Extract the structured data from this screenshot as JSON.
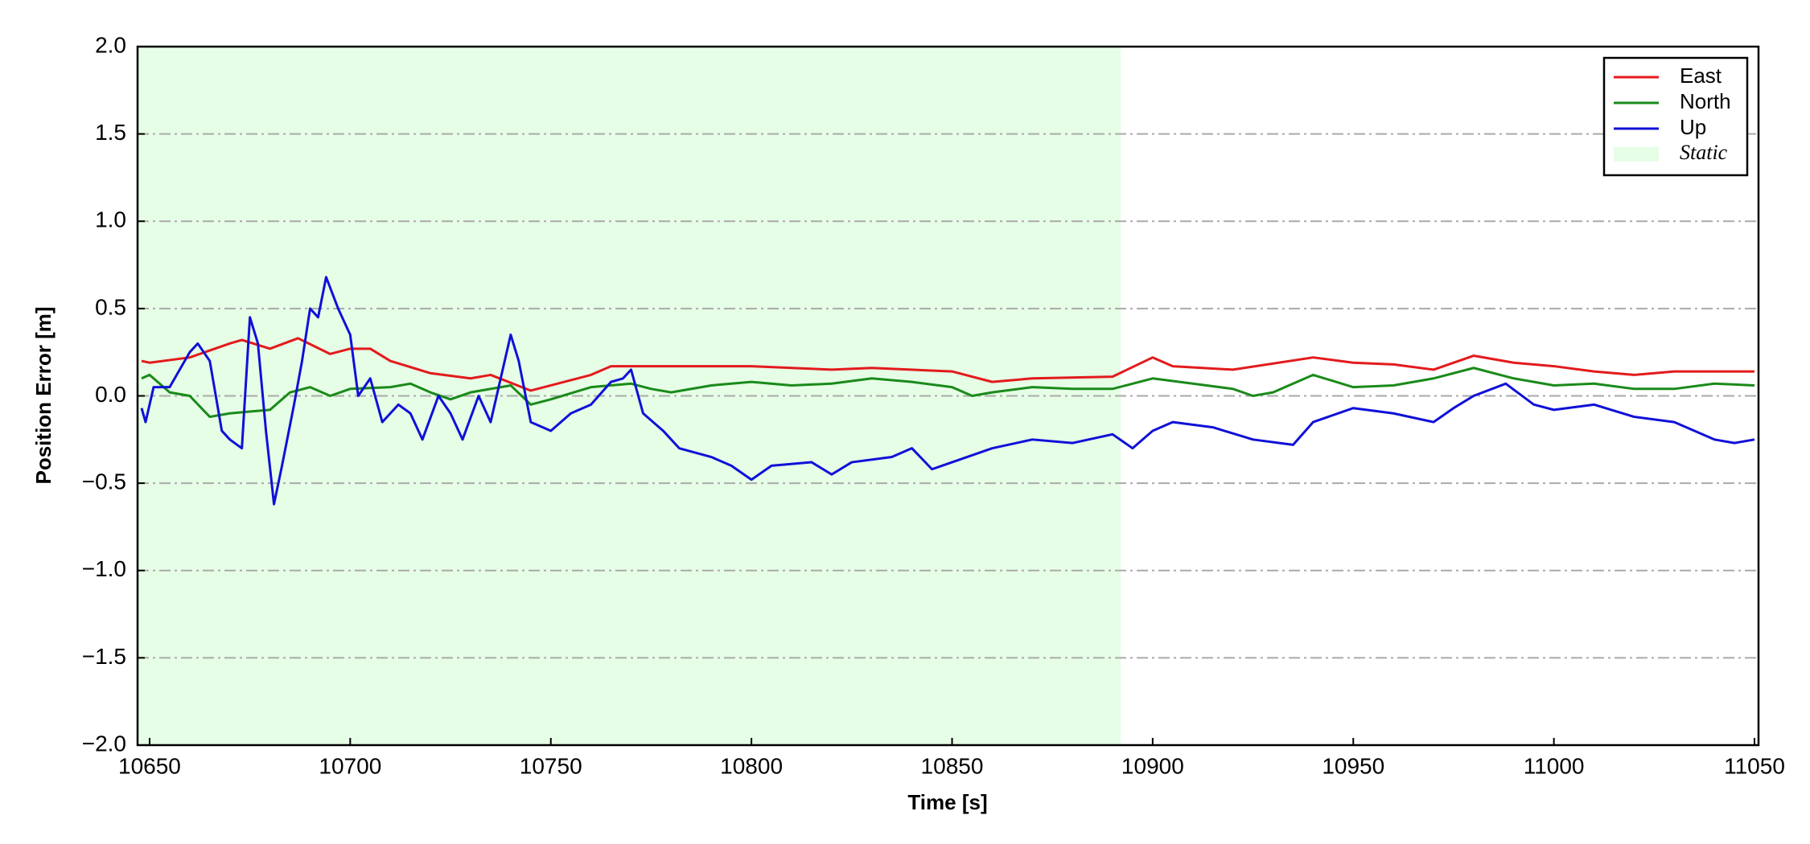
{
  "chart_data": {
    "type": "line",
    "xlabel": "Time [s]",
    "ylabel": "Position Error [m]",
    "xlim": [
      10647,
      11051
    ],
    "xticks": [
      10650,
      10700,
      10750,
      10800,
      10850,
      10900,
      10950,
      11000,
      11050
    ],
    "ylim": [
      -2,
      2
    ],
    "yticks": [
      {
        "value": -2,
        "label": "−2.0"
      },
      {
        "value": -1.5,
        "label": "−1.5"
      },
      {
        "value": -1,
        "label": "−1.0"
      },
      {
        "value": -0.5,
        "label": "−0.5"
      },
      {
        "value": 0,
        "label": "0.0"
      },
      {
        "value": 0.5,
        "label": "0.5"
      },
      {
        "value": 1,
        "label": "1.0"
      },
      {
        "value": 1.5,
        "label": "1.5"
      },
      {
        "value": 2,
        "label": "2.0"
      }
    ],
    "grid": "y",
    "legend": "upper right",
    "shaded": {
      "name": "Static",
      "color": "#e6fde6",
      "x": [
        10647,
        10892
      ]
    },
    "series": [
      {
        "name": "East",
        "color": "#e31a1c",
        "x": [
          10648,
          10650,
          10660,
          10670,
          10673,
          10680,
          10687,
          10695,
          10700,
          10705,
          10710,
          10720,
          10730,
          10735,
          10745,
          10750,
          10760,
          10765,
          10780,
          10800,
          10820,
          10830,
          10850,
          10860,
          10870,
          10890,
          10900,
          10905,
          10920,
          10940,
          10950,
          10960,
          10970,
          10980,
          10990,
          11000,
          11010,
          11020,
          11030,
          11050
        ],
        "values": [
          0.2,
          0.19,
          0.22,
          0.3,
          0.32,
          0.27,
          0.33,
          0.24,
          0.27,
          0.27,
          0.2,
          0.13,
          0.1,
          0.12,
          0.03,
          0.06,
          0.12,
          0.17,
          0.17,
          0.17,
          0.15,
          0.16,
          0.14,
          0.08,
          0.1,
          0.11,
          0.22,
          0.17,
          0.15,
          0.22,
          0.19,
          0.18,
          0.15,
          0.23,
          0.19,
          0.17,
          0.14,
          0.12,
          0.14,
          0.14
        ]
      },
      {
        "name": "North",
        "color": "#1a8a1a",
        "x": [
          10648,
          10650,
          10655,
          10660,
          10665,
          10670,
          10675,
          10680,
          10685,
          10690,
          10695,
          10700,
          10710,
          10715,
          10720,
          10725,
          10730,
          10740,
          10745,
          10750,
          10760,
          10770,
          10775,
          10780,
          10790,
          10800,
          10810,
          10820,
          10830,
          10840,
          10850,
          10855,
          10860,
          10870,
          10880,
          10890,
          10900,
          10910,
          10920,
          10925,
          10930,
          10940,
          10950,
          10960,
          10970,
          10980,
          10990,
          11000,
          11010,
          11020,
          11030,
          11040,
          11050
        ],
        "values": [
          0.1,
          0.12,
          0.02,
          0.0,
          -0.12,
          -0.1,
          -0.09,
          -0.08,
          0.02,
          0.05,
          0.0,
          0.04,
          0.05,
          0.07,
          0.02,
          -0.02,
          0.02,
          0.06,
          -0.05,
          -0.02,
          0.05,
          0.07,
          0.04,
          0.02,
          0.06,
          0.08,
          0.06,
          0.07,
          0.1,
          0.08,
          0.05,
          0.0,
          0.02,
          0.05,
          0.04,
          0.04,
          0.1,
          0.07,
          0.04,
          0.0,
          0.02,
          0.12,
          0.05,
          0.06,
          0.1,
          0.16,
          0.1,
          0.06,
          0.07,
          0.04,
          0.04,
          0.07,
          0.06
        ]
      },
      {
        "name": "Up",
        "color": "#1010d8",
        "x": [
          10648,
          10649,
          10651,
          10655,
          10660,
          10662,
          10665,
          10668,
          10670,
          10673,
          10675,
          10677,
          10679,
          10681,
          10683,
          10686,
          10688,
          10690,
          10692,
          10694,
          10697,
          10700,
          10702,
          10705,
          10708,
          10712,
          10715,
          10718,
          10722,
          10725,
          10728,
          10732,
          10735,
          10740,
          10742,
          10745,
          10750,
          10755,
          10760,
          10765,
          10768,
          10770,
          10773,
          10778,
          10782,
          10790,
          10795,
          10800,
          10805,
          10815,
          10820,
          10825,
          10835,
          10840,
          10845,
          10850,
          10860,
          10870,
          10880,
          10890,
          10895,
          10900,
          10905,
          10915,
          10925,
          10935,
          10940,
          10950,
          10960,
          10970,
          10975,
          10980,
          10988,
          10995,
          11000,
          11010,
          11020,
          11030,
          11040,
          11045,
          11050
        ],
        "values": [
          -0.07,
          -0.15,
          0.05,
          0.05,
          0.25,
          0.3,
          0.2,
          -0.2,
          -0.25,
          -0.3,
          0.45,
          0.3,
          -0.2,
          -0.62,
          -0.4,
          -0.05,
          0.2,
          0.5,
          0.45,
          0.68,
          0.5,
          0.35,
          0.0,
          0.1,
          -0.15,
          -0.05,
          -0.1,
          -0.25,
          0.0,
          -0.1,
          -0.25,
          0.0,
          -0.15,
          0.35,
          0.2,
          -0.15,
          -0.2,
          -0.1,
          -0.05,
          0.08,
          0.1,
          0.15,
          -0.1,
          -0.2,
          -0.3,
          -0.35,
          -0.4,
          -0.48,
          -0.4,
          -0.38,
          -0.45,
          -0.38,
          -0.35,
          -0.3,
          -0.42,
          -0.38,
          -0.3,
          -0.25,
          -0.27,
          -0.22,
          -0.3,
          -0.2,
          -0.15,
          -0.18,
          -0.25,
          -0.28,
          -0.15,
          -0.07,
          -0.1,
          -0.15,
          -0.07,
          0.0,
          0.07,
          -0.05,
          -0.08,
          -0.05,
          -0.12,
          -0.15,
          -0.25,
          -0.27,
          -0.25
        ]
      }
    ]
  }
}
